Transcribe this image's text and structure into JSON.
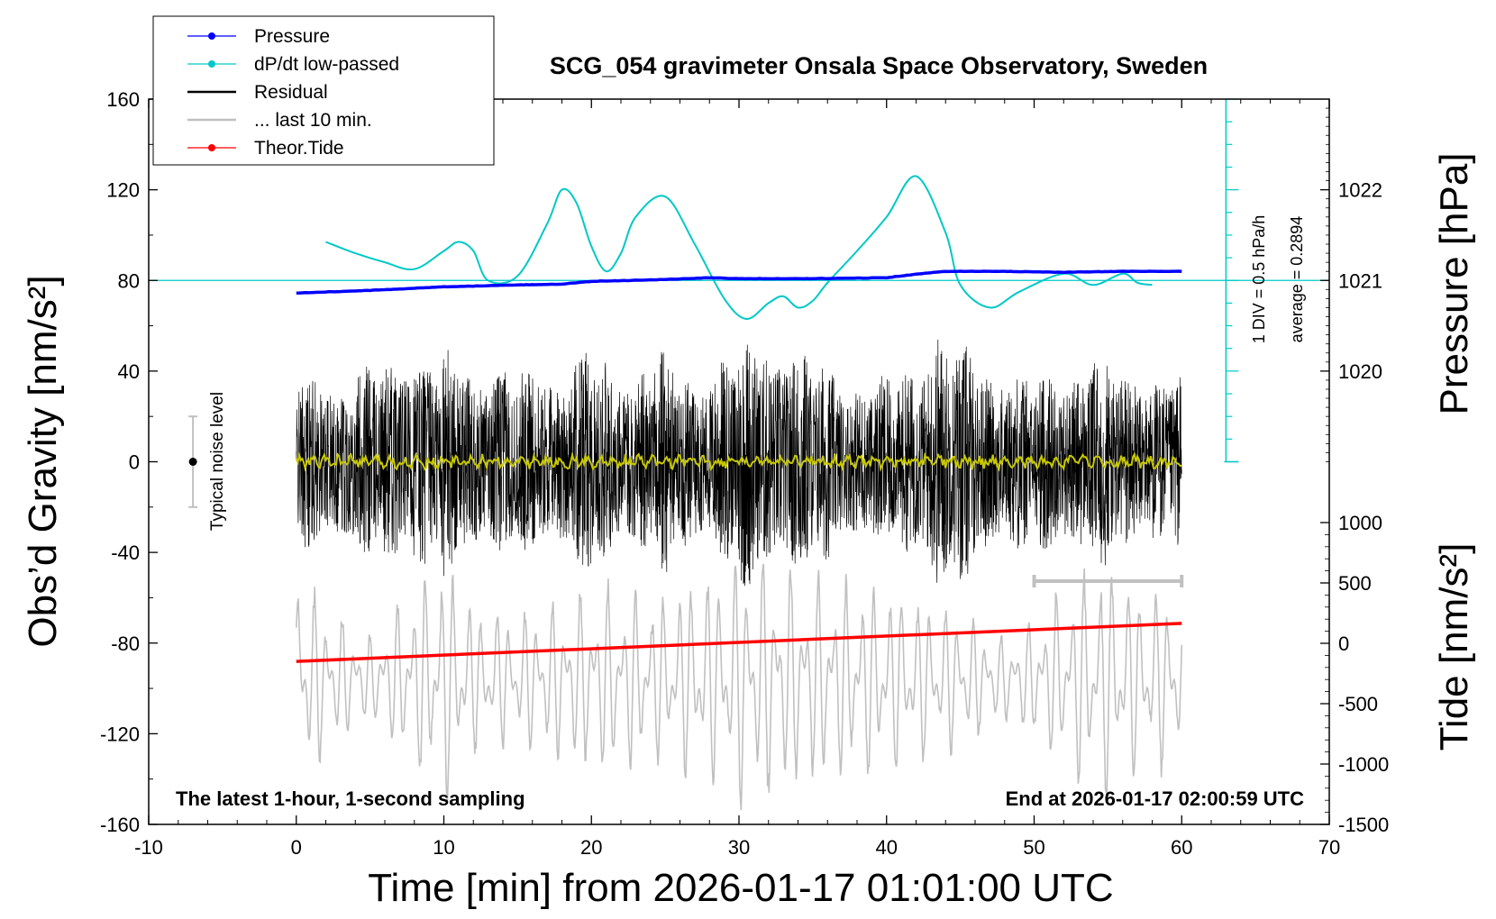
{
  "chart_data": {
    "type": "line",
    "title": "SCG_054 gravimeter Onsala Space Observatory, Sweden",
    "xlabel": "Time [min] from 2026-01-17 01:01:00 UTC",
    "ylabel_left": "Obs’d Gravity [nm/s²]",
    "ylabel_right_top": "Pressure [hPa]",
    "ylabel_right_bottom": "Tide [nm/s²]",
    "xlim": [
      -10,
      70
    ],
    "ylim": [
      -160,
      160
    ],
    "x_ticks": [
      "-10",
      "0",
      "10",
      "20",
      "30",
      "40",
      "50",
      "60",
      "70"
    ],
    "y_ticks": [
      "160",
      "120",
      "80",
      "40",
      "0",
      "-40",
      "-80",
      "-120",
      "-160"
    ],
    "pressure_axis": {
      "ticks": [
        "1022",
        "1021",
        "1020"
      ],
      "tick_values": [
        1022,
        1021,
        1020
      ],
      "center_value": 1021,
      "scale_per_nms2": 0.025
    },
    "tide_axis": {
      "ticks": [
        "1000",
        "500",
        "0",
        "-500",
        "-1000",
        "-1500"
      ],
      "tick_values": [
        1000,
        500,
        0,
        -500,
        -1000,
        -1500
      ],
      "range": [
        -1500,
        1500
      ]
    },
    "footnote_left": "The latest 1-hour, 1-second sampling",
    "footnote_right": "End at 2026-01-17 02:00:59 UTC",
    "noise_label": "Typical noise level",
    "noise_bar": {
      "x": -7,
      "y": 0,
      "low": -20,
      "high": 20
    },
    "dpdt_note_1": "1 DIV = 0.5 hPa/h",
    "dpdt_note_2": "average = 0.2894",
    "dpdt_scale": {
      "x": 63,
      "y_min": 0,
      "y_max": 160
    },
    "last10_marker": {
      "x_start": 50,
      "x_end": 60,
      "y": -53
    },
    "legend": [
      {
        "label": "Pressure",
        "color": "#0000ff",
        "style": "line-dot"
      },
      {
        "label": "dP/dt low-passed",
        "color": "#00c8c8",
        "style": "line-dot"
      },
      {
        "label": "Residual",
        "color": "#000000",
        "style": "line"
      },
      {
        "label": "... last 10 min.",
        "color": "#c0c0c0",
        "style": "line"
      },
      {
        "label": "Theor.Tide",
        "color": "#ff0000",
        "style": "line-dot"
      }
    ],
    "series": [
      {
        "name": "Pressure",
        "color": "#0000ff",
        "axis": "pressure",
        "x": [
          0,
          5,
          10,
          15,
          18,
          20,
          25,
          28,
          30,
          35,
          40,
          42,
          44,
          48,
          52,
          56,
          60
        ],
        "y": [
          1020.86,
          1020.89,
          1020.93,
          1020.95,
          1020.96,
          1020.99,
          1021.01,
          1021.03,
          1021.02,
          1021.02,
          1021.03,
          1021.07,
          1021.1,
          1021.1,
          1021.09,
          1021.1,
          1021.1
        ]
      },
      {
        "name": "dP/dt low-passed",
        "color": "#00c8c8",
        "axis": "gravity",
        "x": [
          2,
          4,
          6,
          8,
          10,
          11,
          12,
          13,
          15,
          17,
          18,
          19,
          20,
          21,
          22,
          23,
          25,
          27,
          29,
          30.5,
          32,
          33,
          34,
          35,
          36,
          38,
          40,
          42,
          44,
          45,
          47,
          49,
          52,
          54,
          56,
          57,
          58
        ],
        "y": [
          97,
          92,
          88,
          85,
          93,
          97,
          93,
          80,
          82,
          105,
          120,
          114,
          95,
          84,
          92,
          108,
          117,
          96,
          72,
          63,
          70,
          73,
          68,
          71,
          79,
          93,
          108,
          126,
          101,
          78,
          68,
          75,
          83,
          78,
          83,
          79,
          78
        ]
      },
      {
        "name": "Residual",
        "color": "#000000",
        "axis": "gravity",
        "x_range": [
          0,
          60
        ],
        "envelope_x": [
          0,
          5,
          8,
          12,
          15,
          20,
          22,
          25,
          28,
          30,
          32,
          35,
          38,
          40,
          42,
          43.5,
          45,
          48,
          50,
          53,
          55,
          58,
          60
        ],
        "envelope_amp": [
          40,
          45,
          55,
          48,
          42,
          52,
          45,
          50,
          44,
          58,
          62,
          50,
          40,
          38,
          50,
          65,
          55,
          45,
          40,
          48,
          50,
          42,
          40
        ]
      },
      {
        "name": "Residual low-passed",
        "color": "#c8c800",
        "axis": "gravity",
        "x_range": [
          0,
          60
        ],
        "amplitude": 2.5
      },
      {
        "name": "... last 10 min.",
        "color": "#c0c0c0",
        "axis": "tide",
        "x_range": [
          0,
          60
        ],
        "envelope_x": [
          0,
          2,
          5,
          8,
          10,
          12,
          15,
          20,
          25,
          30,
          35,
          40,
          45,
          48,
          50,
          53,
          55,
          57,
          60
        ],
        "envelope_amp": [
          1100,
          700,
          400,
          900,
          1200,
          700,
          600,
          900,
          800,
          1200,
          1000,
          900,
          650,
          400,
          600,
          1000,
          1100,
          900,
          800
        ]
      },
      {
        "name": "Theor.Tide",
        "color": "#ff0000",
        "axis": "tide",
        "x": [
          0,
          60
        ],
        "y": [
          -150,
          165
        ]
      }
    ]
  }
}
